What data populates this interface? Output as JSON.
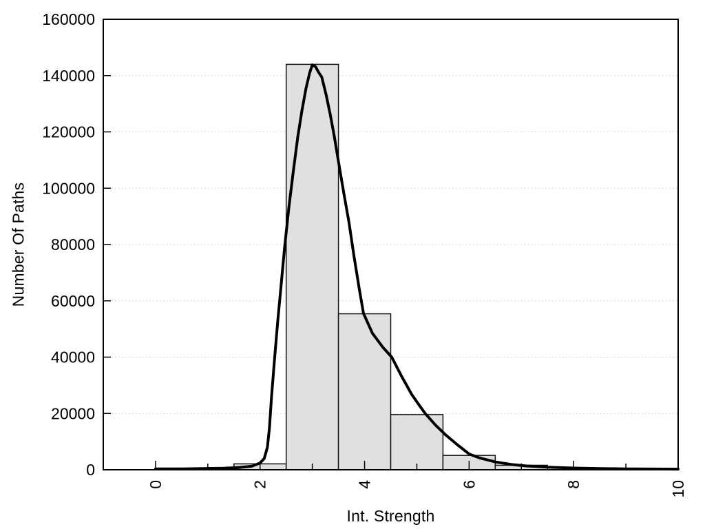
{
  "figure": {
    "background": "#ffffff"
  },
  "chart_data": {
    "type": "bar",
    "subtype": "histogram-with-curve",
    "title": "",
    "xlabel": "Int. Strength",
    "ylabel": "Number Of Paths",
    "xlim": [
      -1,
      10
    ],
    "ylim": [
      0,
      160000
    ],
    "grid": "horizontal-dotted",
    "legend": "none",
    "x_major_ticks": [
      0,
      2,
      4,
      6,
      8,
      10
    ],
    "x_minor_ticks": [
      1,
      3,
      5,
      7,
      9
    ],
    "x_tick_labels": [
      "0",
      "2",
      "4",
      "6",
      "8",
      "10"
    ],
    "x_tick_label_rotation_deg": -90,
    "y_ticks": [
      0,
      20000,
      40000,
      60000,
      80000,
      100000,
      120000,
      140000,
      160000
    ],
    "y_tick_labels": [
      "0",
      "20000",
      "40000",
      "60000",
      "80000",
      "100000",
      "120000",
      "140000",
      "160000"
    ],
    "bars": [
      {
        "x0": 1.5,
        "x1": 2.5,
        "value": 2100
      },
      {
        "x0": 2.5,
        "x1": 3.5,
        "value": 144000
      },
      {
        "x0": 3.5,
        "x1": 4.5,
        "value": 55400
      },
      {
        "x0": 4.5,
        "x1": 5.5,
        "value": 19600
      },
      {
        "x0": 5.5,
        "x1": 6.5,
        "value": 5100
      },
      {
        "x0": 6.5,
        "x1": 7.5,
        "value": 1600
      }
    ],
    "curve": {
      "name": "fit-curve",
      "points": [
        [
          0,
          300
        ],
        [
          0.5,
          330
        ],
        [
          0.9,
          420
        ],
        [
          1.3,
          560
        ],
        [
          1.6,
          800
        ],
        [
          1.85,
          1300
        ],
        [
          2.0,
          2400
        ],
        [
          2.08,
          4000
        ],
        [
          2.14,
          8000
        ],
        [
          2.18,
          15000
        ],
        [
          2.22,
          26000
        ],
        [
          2.28,
          40000
        ],
        [
          2.34,
          53000
        ],
        [
          2.4,
          65000
        ],
        [
          2.47,
          79000
        ],
        [
          2.55,
          93000
        ],
        [
          2.63,
          105000
        ],
        [
          2.72,
          118000
        ],
        [
          2.8,
          127500
        ],
        [
          2.88,
          135500
        ],
        [
          2.95,
          141000
        ],
        [
          3.0,
          143800
        ],
        [
          3.06,
          143200
        ],
        [
          3.12,
          141200
        ],
        [
          3.18,
          139500
        ],
        [
          3.26,
          133500
        ],
        [
          3.34,
          126500
        ],
        [
          3.42,
          118500
        ],
        [
          3.5,
          109500
        ],
        [
          3.6,
          98500
        ],
        [
          3.7,
          88000
        ],
        [
          3.8,
          75500
        ],
        [
          3.9,
          64000
        ],
        [
          3.98,
          55500
        ],
        [
          4.15,
          48500
        ],
        [
          4.35,
          43500
        ],
        [
          4.52,
          40000
        ],
        [
          4.7,
          33500
        ],
        [
          4.9,
          26800
        ],
        [
          5.05,
          22800
        ],
        [
          5.16,
          20000
        ],
        [
          5.35,
          16000
        ],
        [
          5.55,
          12400
        ],
        [
          5.78,
          8800
        ],
        [
          6.0,
          5600
        ],
        [
          6.2,
          4200
        ],
        [
          6.5,
          2800
        ],
        [
          6.8,
          1900
        ],
        [
          7.1,
          1350
        ],
        [
          7.5,
          900
        ],
        [
          8.0,
          600
        ],
        [
          8.5,
          430
        ],
        [
          9.0,
          330
        ],
        [
          9.5,
          270
        ],
        [
          10,
          230
        ]
      ]
    },
    "colors": {
      "bar_fill": "#e0e0e0",
      "bar_border": "#111111",
      "curve": "#000000",
      "axis_frame": "#000000",
      "gridline": "#c9c9c9",
      "tick": "#000000",
      "text": "#000000"
    }
  }
}
